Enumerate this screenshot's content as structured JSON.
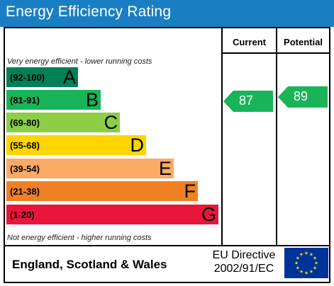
{
  "title": "Energy Efficiency Rating",
  "columns": {
    "current": "Current",
    "potential": "Potential"
  },
  "notes": {
    "top": "Very energy efficient - lower running costs",
    "bottom": "Not energy efficient - higher running costs"
  },
  "bands": [
    {
      "range": "(92-100)",
      "letter": "A",
      "color": "#008054"
    },
    {
      "range": "(81-91)",
      "letter": "B",
      "color": "#19b459"
    },
    {
      "range": "(69-80)",
      "letter": "C",
      "color": "#8dce46"
    },
    {
      "range": "(55-68)",
      "letter": "D",
      "color": "#ffd500"
    },
    {
      "range": "(39-54)",
      "letter": "E",
      "color": "#fcaa65"
    },
    {
      "range": "(21-38)",
      "letter": "F",
      "color": "#ef8023"
    },
    {
      "range": "(1-20)",
      "letter": "G",
      "color": "#e9153b"
    }
  ],
  "current_rating": {
    "value": "87",
    "band": "B",
    "color": "#19b459"
  },
  "potential_rating": {
    "value": "89",
    "band": "B",
    "color": "#19b459"
  },
  "footer": {
    "region": "England, Scotland & Wales",
    "directive_line1": "EU Directive",
    "directive_line2": "2002/91/EC",
    "flag_icon": "eu-flag-icon"
  },
  "colors": {
    "title_bar": "#1a7fc2",
    "flag_blue": "#003399",
    "flag_stars": "#ffdd00"
  }
}
